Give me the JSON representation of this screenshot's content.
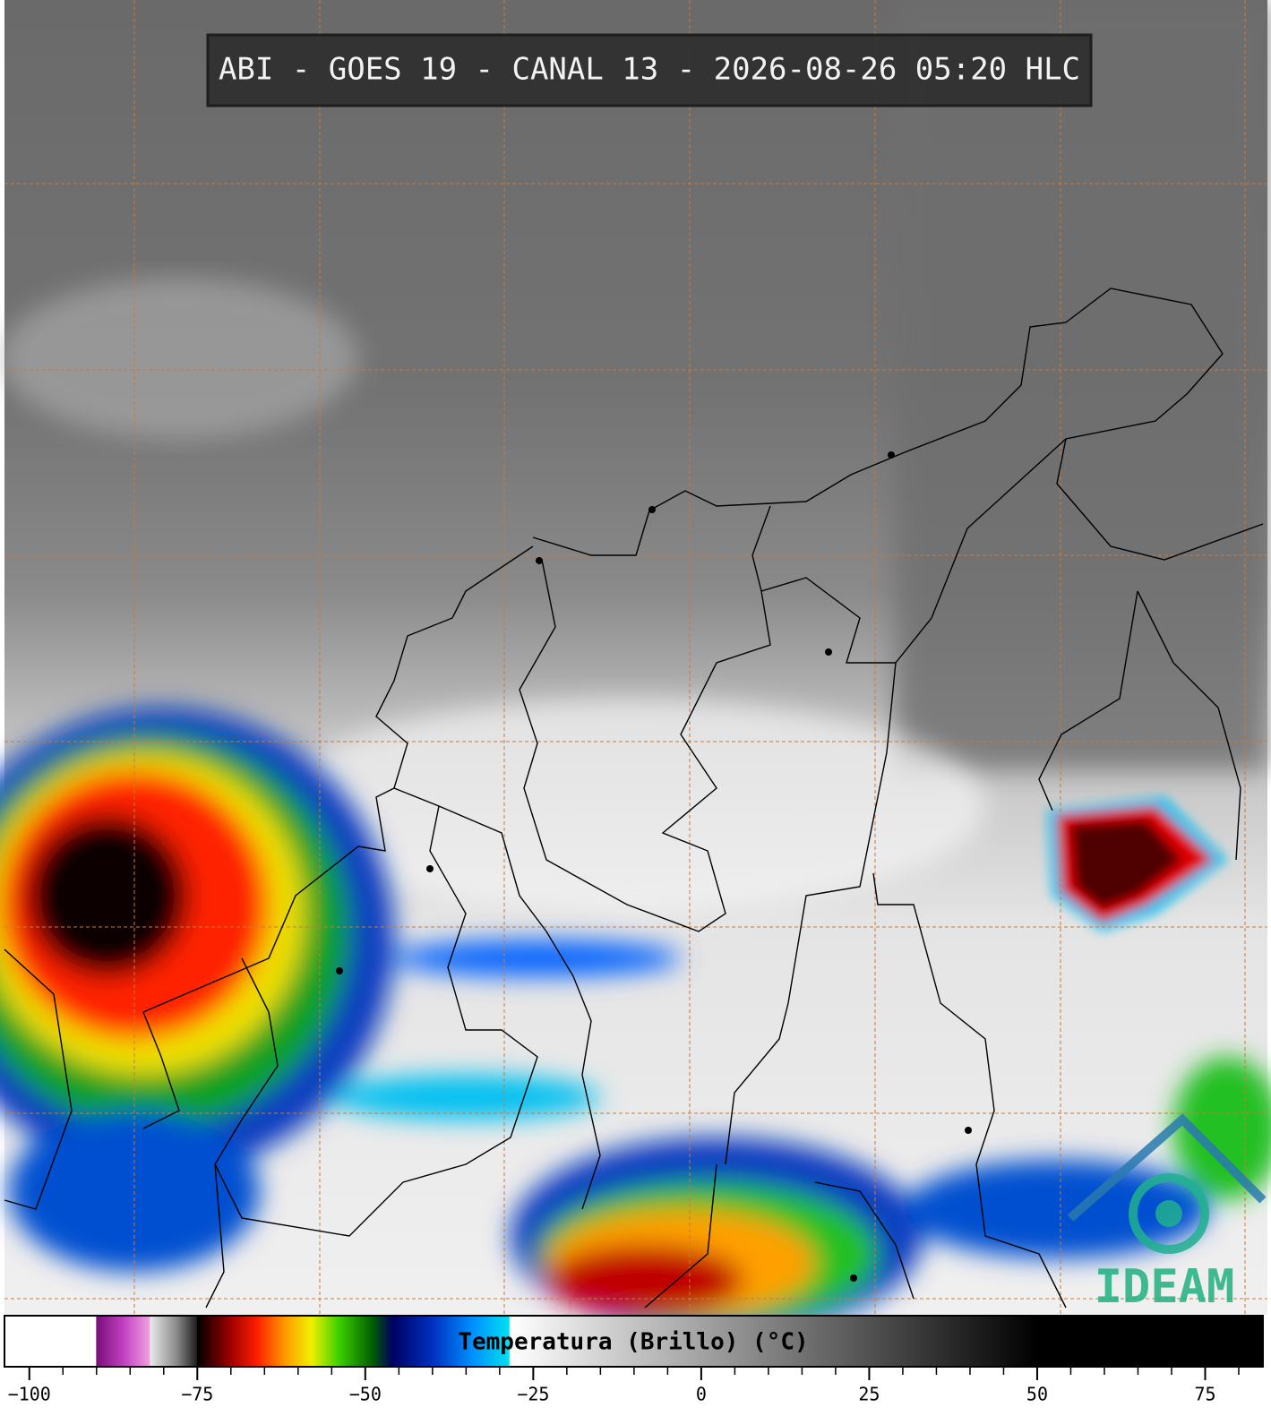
{
  "title": "ABI - GOES 19 - CANAL 13 - 2026-08-26 05:20 HLC",
  "logo": "IDEAM",
  "colorbar": {
    "label": "Temperatura (Brillo) (°C)",
    "xlim": [
      -103.7,
      83.6
    ],
    "xticks": [
      {
        "value": -100,
        "label": "−100"
      },
      {
        "value": -75,
        "label": "−75"
      },
      {
        "value": -50,
        "label": "−50"
      },
      {
        "value": -25,
        "label": "−25"
      },
      0,
      25,
      50,
      75
    ],
    "minor_xticks": [
      -95,
      -90,
      -85,
      -80,
      -70,
      -65,
      -60,
      -55,
      -45,
      -40,
      -35,
      -30,
      -20,
      -15,
      -10,
      -5,
      5,
      10,
      15,
      20,
      30,
      35,
      40,
      45,
      55,
      60,
      65,
      70,
      80
    ],
    "colormap": [
      {
        "value": -103.7,
        "color": "#ffffff"
      },
      {
        "value": -90.1,
        "color": "#ffffff"
      },
      {
        "value": -90,
        "color": "#7a0f7a"
      },
      {
        "value": -86,
        "color": "#c040c0"
      },
      {
        "value": -82.1,
        "color": "#f0a0e0"
      },
      {
        "value": -82,
        "color": "#e8e8e8"
      },
      {
        "value": -78,
        "color": "#888888"
      },
      {
        "value": -75.1,
        "color": "#202020"
      },
      {
        "value": -75,
        "color": "#000000"
      },
      {
        "value": -70,
        "color": "#a00000"
      },
      {
        "value": -66,
        "color": "#ff2000"
      },
      {
        "value": -62,
        "color": "#ff9900"
      },
      {
        "value": -58,
        "color": "#f0f000"
      },
      {
        "value": -54,
        "color": "#40d000"
      },
      {
        "value": -49,
        "color": "#006000"
      },
      {
        "value": -46,
        "color": "#000060"
      },
      {
        "value": -40,
        "color": "#0030c0"
      },
      {
        "value": -34,
        "color": "#0090ff"
      },
      {
        "value": -28.6,
        "color": "#00e0f0"
      },
      {
        "value": -28.5,
        "color": "#ffffff"
      },
      {
        "value": 50,
        "color": "#000000"
      },
      {
        "value": 83.6,
        "color": "#000000"
      }
    ]
  }
}
